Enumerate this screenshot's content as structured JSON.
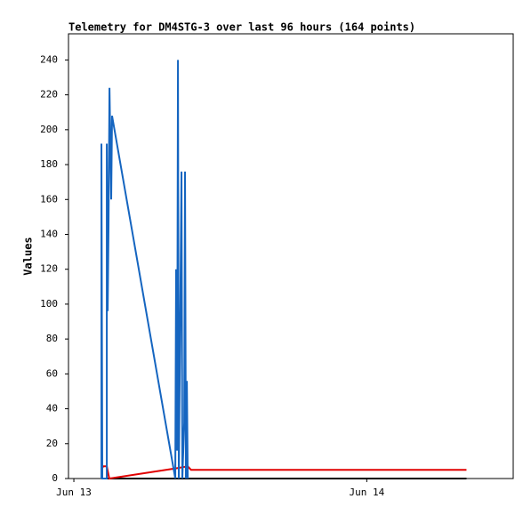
{
  "chart_data": {
    "type": "line",
    "title": "Telemetry for DM4STG-3 over last 96 hours (164 points)",
    "y_label": "Values",
    "xlim": [
      -0.44,
      36
    ],
    "xticks": [
      {
        "value": 0,
        "label": "Jun 13"
      },
      {
        "value": 24,
        "label": "Jun 14"
      }
    ],
    "ylim": [
      0,
      255
    ],
    "yticks": [
      0,
      20,
      40,
      60,
      80,
      100,
      120,
      140,
      160,
      180,
      200,
      220,
      240
    ],
    "grid": false,
    "series": [
      {
        "color": "#000000",
        "x": [
          2.26,
          32.17
        ],
        "values": [
          0,
          0
        ]
      },
      {
        "color": "#e00000",
        "x": [
          2.26,
          2.4,
          2.7,
          2.9,
          8.5,
          9.33,
          9.6,
          32.17
        ],
        "values": [
          5,
          7,
          7,
          0,
          6,
          7,
          5,
          5
        ]
      },
      {
        "color": "#1565c0",
        "x": [
          2.26,
          2.26,
          2.33,
          2.7,
          2.7,
          2.77,
          2.84,
          2.92,
          2.99,
          3.06,
          3.13,
          8.31,
          8.38,
          8.46,
          8.53,
          8.6,
          8.82,
          8.89,
          9.04,
          9.11,
          9.18,
          9.26,
          9.33
        ],
        "values": [
          0,
          192,
          0,
          0,
          192,
          96,
          144,
          224,
          192,
          160,
          208,
          0,
          120,
          16,
          240,
          0,
          176,
          0,
          32,
          176,
          0,
          56,
          0
        ]
      }
    ]
  }
}
